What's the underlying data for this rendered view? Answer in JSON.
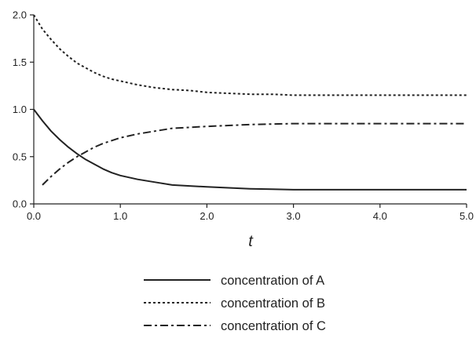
{
  "chart_data": {
    "type": "line",
    "title": "",
    "xlabel": "t",
    "ylabel": "",
    "xlim": [
      0,
      5
    ],
    "ylim": [
      0,
      2
    ],
    "grid": false,
    "legend_position": "bottom",
    "x_ticks": [
      "0.0",
      "1.0",
      "2.0",
      "3.0",
      "4.0",
      "5.0"
    ],
    "y_ticks": [
      "0.0",
      "0.5",
      "1.0",
      "1.5",
      "2.0"
    ],
    "series": [
      {
        "name": "concentration of A",
        "line_style": "solid",
        "color": "#222222",
        "x": [
          0.0,
          0.1,
          0.2,
          0.3,
          0.4,
          0.5,
          0.6,
          0.7,
          0.8,
          0.9,
          1.0,
          1.2,
          1.4,
          1.6,
          1.8,
          2.0,
          2.25,
          2.5,
          2.75,
          3.0,
          3.5,
          4.0,
          4.5,
          5.0
        ],
        "y": [
          1.0,
          0.88,
          0.77,
          0.68,
          0.6,
          0.53,
          0.47,
          0.42,
          0.37,
          0.33,
          0.3,
          0.26,
          0.23,
          0.2,
          0.19,
          0.18,
          0.17,
          0.16,
          0.155,
          0.15,
          0.15,
          0.15,
          0.15,
          0.15
        ]
      },
      {
        "name": "concentration of B",
        "line_style": "dotted",
        "color": "#222222",
        "x": [
          0.0,
          0.1,
          0.2,
          0.3,
          0.4,
          0.5,
          0.6,
          0.7,
          0.8,
          0.9,
          1.0,
          1.2,
          1.4,
          1.6,
          1.8,
          2.0,
          2.25,
          2.5,
          2.75,
          3.0,
          3.5,
          4.0,
          4.5,
          5.0
        ],
        "y": [
          2.0,
          1.85,
          1.74,
          1.64,
          1.56,
          1.49,
          1.44,
          1.39,
          1.35,
          1.32,
          1.3,
          1.26,
          1.23,
          1.21,
          1.2,
          1.18,
          1.17,
          1.16,
          1.16,
          1.15,
          1.15,
          1.15,
          1.15,
          1.15
        ]
      },
      {
        "name": "concentration of C",
        "line_style": "dash-dot",
        "color": "#222222",
        "x": [
          0.1,
          0.2,
          0.3,
          0.4,
          0.5,
          0.6,
          0.7,
          0.8,
          0.9,
          1.0,
          1.2,
          1.4,
          1.6,
          1.8,
          2.0,
          2.25,
          2.5,
          2.75,
          3.0,
          3.5,
          4.0,
          4.5,
          5.0
        ],
        "y": [
          0.2,
          0.29,
          0.37,
          0.44,
          0.5,
          0.55,
          0.6,
          0.64,
          0.67,
          0.7,
          0.74,
          0.77,
          0.8,
          0.81,
          0.82,
          0.83,
          0.84,
          0.845,
          0.85,
          0.85,
          0.85,
          0.85,
          0.85
        ]
      }
    ]
  }
}
